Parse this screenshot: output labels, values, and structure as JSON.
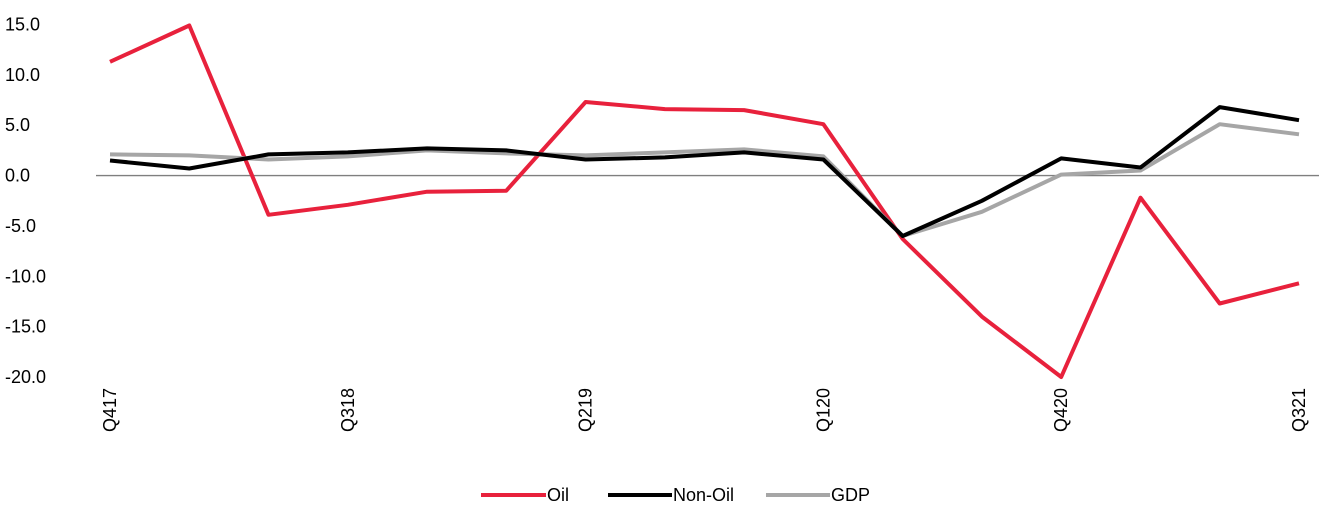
{
  "chart_data": {
    "type": "line",
    "title": "",
    "xlabel": "",
    "ylabel": "",
    "categories": [
      "Q417",
      "Q118",
      "Q218",
      "Q318",
      "Q418",
      "Q119",
      "Q219",
      "Q319",
      "Q419",
      "Q120",
      "Q220",
      "Q320",
      "Q420",
      "Q121",
      "Q221",
      "Q321"
    ],
    "tick_labels": [
      "Q417",
      "Q318",
      "Q219",
      "Q120",
      "Q420",
      "Q321"
    ],
    "y_ticks": [
      "15.0",
      "10.0",
      "5.0",
      "0.0",
      "-5.0",
      "-10.0",
      "-15.0",
      "-20.0"
    ],
    "ylim": [
      -20,
      15
    ],
    "grid": false,
    "zero_line": true,
    "legend_position": "bottom",
    "series": [
      {
        "name": "Oil",
        "color": "#e8213c",
        "values": [
          11.3,
          14.9,
          -3.9,
          -2.9,
          -1.6,
          -1.5,
          7.3,
          6.6,
          6.5,
          5.1,
          -6.3,
          -14.0,
          -20.0,
          -2.2,
          -12.7,
          -10.7
        ]
      },
      {
        "name": "Non-Oil",
        "color": "#000000",
        "values": [
          1.5,
          0.7,
          2.1,
          2.3,
          2.7,
          2.5,
          1.6,
          1.8,
          2.3,
          1.6,
          -6.0,
          -2.5,
          1.7,
          0.8,
          6.8,
          5.5
        ]
      },
      {
        "name": "GDP",
        "color": "#a6a6a6",
        "values": [
          2.1,
          2.0,
          1.6,
          1.9,
          2.5,
          2.2,
          2.0,
          2.3,
          2.6,
          1.9,
          -6.0,
          -3.6,
          0.1,
          0.5,
          5.1,
          4.1
        ]
      }
    ]
  }
}
